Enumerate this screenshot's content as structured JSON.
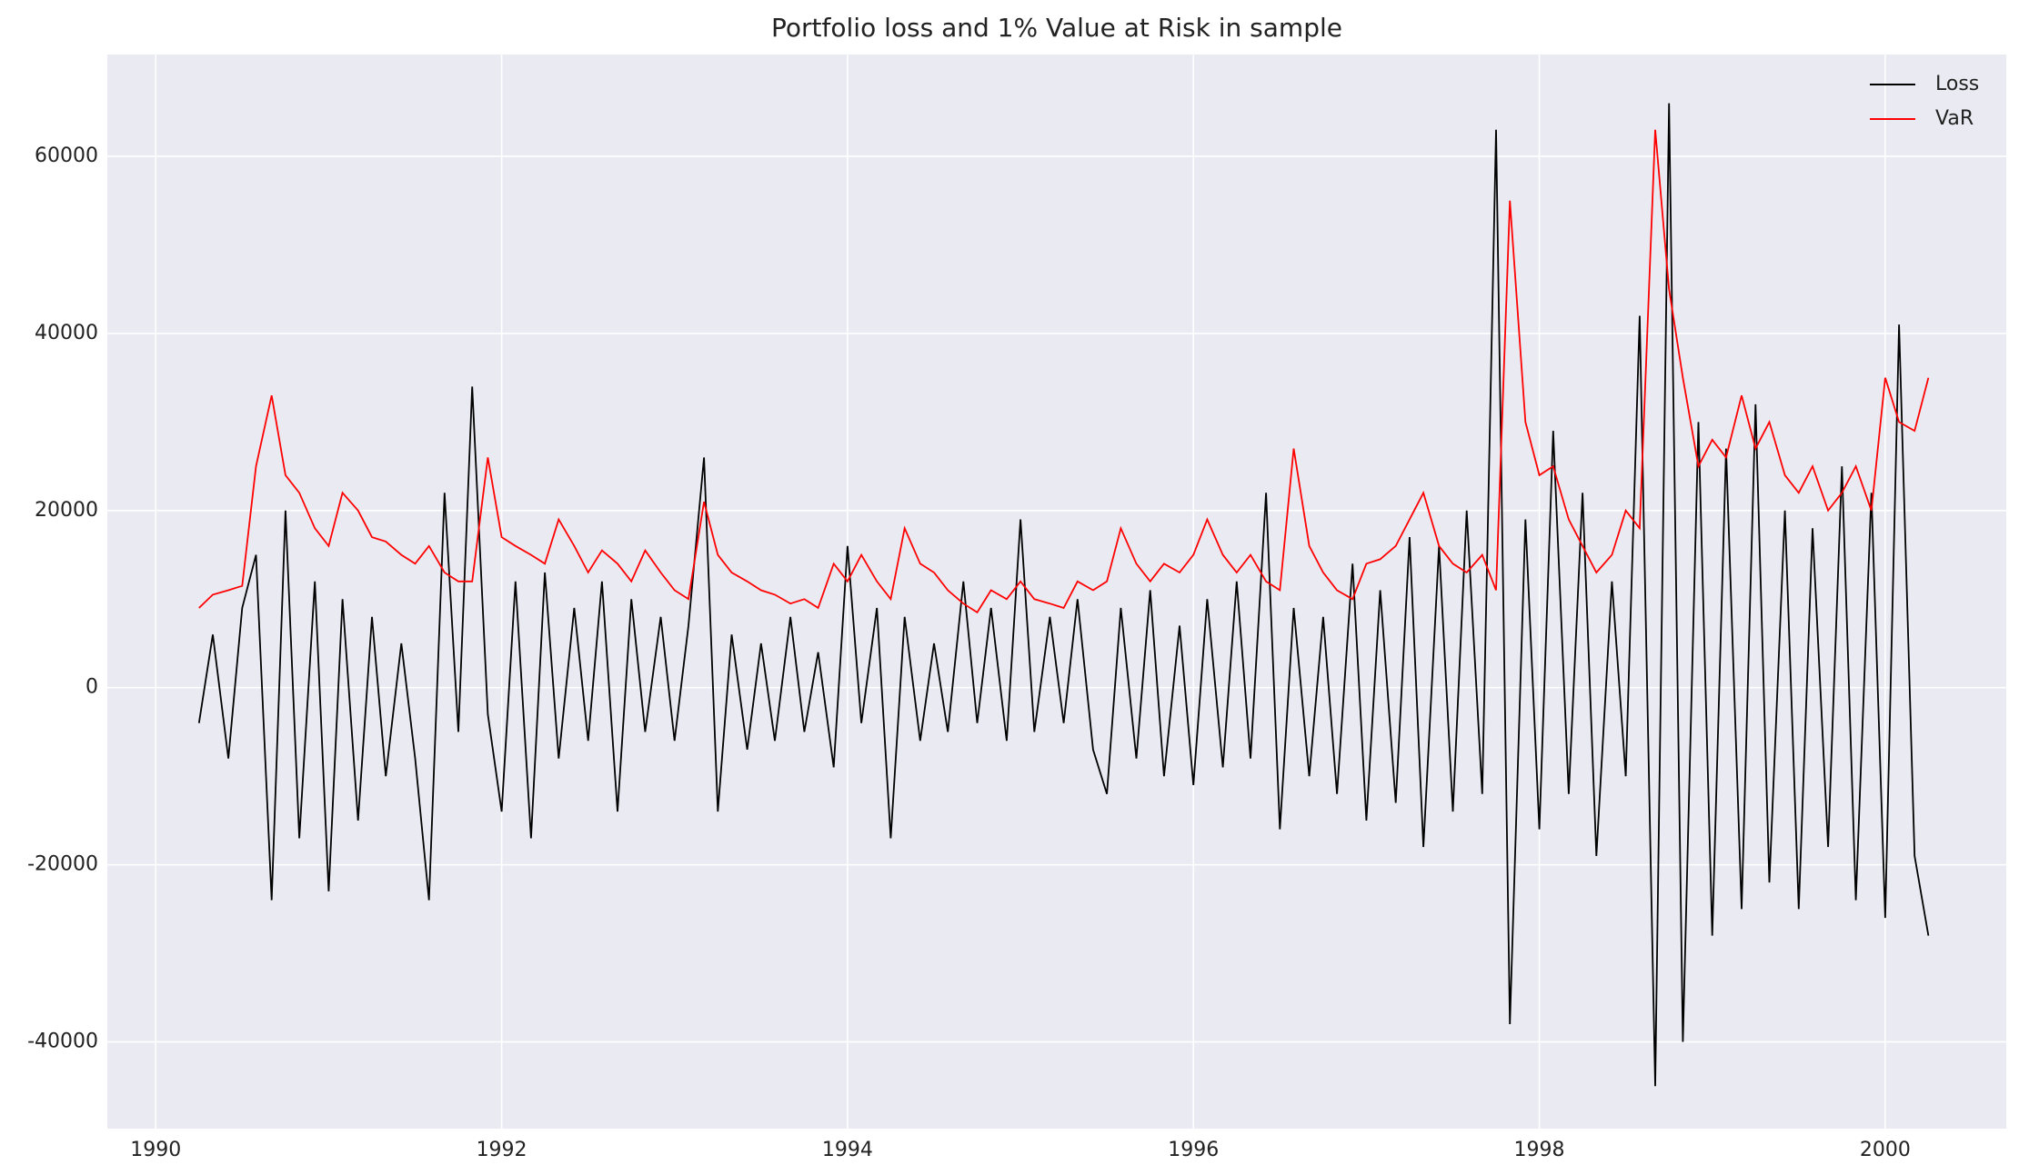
{
  "chart_data": {
    "type": "line",
    "title": "Portfolio loss and 1% Value at Risk in sample",
    "x": [
      1990.25,
      1990.33,
      1990.42,
      1990.5,
      1990.58,
      1990.67,
      1990.75,
      1990.83,
      1990.92,
      1991,
      1991.08,
      1991.17,
      1991.25,
      1991.33,
      1991.42,
      1991.5,
      1991.58,
      1991.67,
      1991.75,
      1991.83,
      1991.92,
      1992,
      1992.08,
      1992.17,
      1992.25,
      1992.33,
      1992.42,
      1992.5,
      1992.58,
      1992.67,
      1992.75,
      1992.83,
      1992.92,
      1993,
      1993.08,
      1993.17,
      1993.25,
      1993.33,
      1993.42,
      1993.5,
      1993.58,
      1993.67,
      1993.75,
      1993.83,
      1993.92,
      1994,
      1994.08,
      1994.17,
      1994.25,
      1994.33,
      1994.42,
      1994.5,
      1994.58,
      1994.67,
      1994.75,
      1994.83,
      1994.92,
      1995,
      1995.08,
      1995.17,
      1995.25,
      1995.33,
      1995.42,
      1995.5,
      1995.58,
      1995.67,
      1995.75,
      1995.83,
      1995.92,
      1996,
      1996.08,
      1996.17,
      1996.25,
      1996.33,
      1996.42,
      1996.5,
      1996.58,
      1996.67,
      1996.75,
      1996.83,
      1996.92,
      1997,
      1997.08,
      1997.17,
      1997.25,
      1997.33,
      1997.42,
      1997.5,
      1997.58,
      1997.67,
      1997.75,
      1997.83,
      1997.92,
      1998,
      1998.08,
      1998.17,
      1998.25,
      1998.33,
      1998.42,
      1998.5,
      1998.58,
      1998.67,
      1998.75,
      1998.83,
      1998.92,
      1999,
      1999.08,
      1999.17,
      1999.25,
      1999.33,
      1999.42,
      1999.5,
      1999.58,
      1999.67,
      1999.75,
      1999.83,
      1999.92,
      2000,
      2000.08,
      2000.17,
      2000.25
    ],
    "series": [
      {
        "name": "Loss",
        "color": "#000000",
        "values": [
          -4000,
          6000,
          -8000,
          9000,
          15000,
          -24000,
          20000,
          -17000,
          12000,
          -23000,
          10000,
          -15000,
          8000,
          -10000,
          5000,
          -8000,
          -24000,
          22000,
          -5000,
          34000,
          -3000,
          -14000,
          12000,
          -17000,
          13000,
          -8000,
          9000,
          -6000,
          12000,
          -14000,
          10000,
          -5000,
          8000,
          -6000,
          7000,
          26000,
          -14000,
          6000,
          -7000,
          5000,
          -6000,
          8000,
          -5000,
          4000,
          -9000,
          16000,
          -4000,
          9000,
          -17000,
          8000,
          -6000,
          5000,
          -5000,
          12000,
          -4000,
          9000,
          -6000,
          19000,
          -5000,
          8000,
          -4000,
          10000,
          -7000,
          -12000,
          9000,
          -8000,
          11000,
          -10000,
          7000,
          -11000,
          10000,
          -9000,
          12000,
          -8000,
          22000,
          -16000,
          9000,
          -10000,
          8000,
          -12000,
          14000,
          -15000,
          11000,
          -13000,
          17000,
          -18000,
          16000,
          -14000,
          20000,
          -12000,
          63000,
          -38000,
          19000,
          -16000,
          29000,
          -12000,
          22000,
          -19000,
          12000,
          -10000,
          42000,
          -45000,
          66000,
          -40000,
          30000,
          -28000,
          27000,
          -25000,
          32000,
          -22000,
          20000,
          -25000,
          18000,
          -18000,
          25000,
          -24000,
          22000,
          -26000,
          41000,
          -19000,
          -28000
        ]
      },
      {
        "name": "VaR",
        "color": "#ff0000",
        "values": [
          9000,
          10500,
          11000,
          11500,
          25000,
          33000,
          24000,
          22000,
          18000,
          16000,
          22000,
          20000,
          17000,
          16500,
          15000,
          14000,
          16000,
          13000,
          12000,
          12000,
          26000,
          17000,
          16000,
          15000,
          14000,
          19000,
          16000,
          13000,
          15500,
          14000,
          12000,
          15500,
          13000,
          11000,
          10000,
          21000,
          15000,
          13000,
          12000,
          11000,
          10500,
          9500,
          10000,
          9000,
          14000,
          12000,
          15000,
          12000,
          10000,
          18000,
          14000,
          13000,
          11000,
          9500,
          8500,
          11000,
          10000,
          12000,
          10000,
          9500,
          9000,
          12000,
          11000,
          12000,
          18000,
          14000,
          12000,
          14000,
          13000,
          15000,
          19000,
          15000,
          13000,
          15000,
          12000,
          11000,
          27000,
          16000,
          13000,
          11000,
          10000,
          14000,
          14500,
          16000,
          19000,
          22000,
          16000,
          14000,
          13000,
          15000,
          11000,
          55000,
          30000,
          24000,
          25000,
          19000,
          16000,
          13000,
          15000,
          20000,
          18000,
          63000,
          45000,
          35000,
          25000,
          28000,
          26000,
          33000,
          27000,
          30000,
          24000,
          22000,
          25000,
          20000,
          22000,
          25000,
          20000,
          35000,
          30000,
          29000,
          35000
        ]
      }
    ],
    "xlim": [
      1989.72,
      2000.7
    ],
    "xticks": [
      1990,
      1992,
      1994,
      1996,
      1998,
      2000
    ],
    "ylim": [
      -49800,
      71500
    ],
    "yticks": [
      -40000,
      -20000,
      0,
      20000,
      40000,
      60000
    ],
    "grid": true,
    "legend": "upper right"
  }
}
